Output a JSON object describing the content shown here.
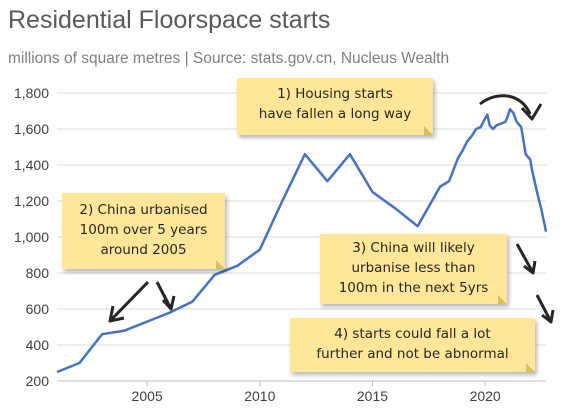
{
  "header": {
    "title": "Residential Floorspace starts",
    "subtitle": "millions of square metres | Source: stats.gov.cn, Nucleus Wealth"
  },
  "annotations": [
    {
      "id": "note1",
      "lines": [
        "1) Housing starts",
        "have fallen a long way"
      ]
    },
    {
      "id": "note2",
      "lines": [
        "2) China urbanised",
        "100m over 5 years",
        "around 2005"
      ]
    },
    {
      "id": "note3",
      "lines": [
        "3) China will likely",
        "urbanise less than",
        "100m in the next 5yrs"
      ]
    },
    {
      "id": "note4",
      "lines": [
        "4) starts could fall a lot",
        "further and not be abnormal"
      ]
    }
  ],
  "colors": {
    "series": "#4472c4",
    "grid": "#d9d9d9",
    "note_fill": "#ffe699",
    "title": "#595959"
  },
  "chart_data": {
    "type": "line",
    "title": "Residential Floorspace starts",
    "subtitle": "millions of square metres | Source: stats.gov.cn, Nucleus Wealth",
    "xlabel": "",
    "ylabel": "",
    "xlim": [
      2001,
      2022.7
    ],
    "ylim": [
      200,
      1800
    ],
    "yticks": [
      200,
      400,
      600,
      800,
      1000,
      1200,
      1400,
      1600,
      1800
    ],
    "ytick_labels": [
      "200",
      "400",
      "600",
      "800",
      "1,000",
      "1,200",
      "1,400",
      "1,600",
      "1,800"
    ],
    "xticks": [
      2005,
      2010,
      2015,
      2020
    ],
    "xtick_labels": [
      "2005",
      "2010",
      "2015",
      "2020"
    ],
    "grid": "horizontal",
    "legend": "none",
    "series": [
      {
        "x": [
          2001,
          2002,
          2003,
          2004,
          2005,
          2006,
          2007,
          2008,
          2009,
          2010,
          2011,
          2012,
          2013,
          2014,
          2015,
          2016,
          2017,
          2018,
          2018.4,
          2018.8,
          2019.0,
          2019.2,
          2019.4,
          2019.6,
          2019.8,
          2020.0,
          2020.1,
          2020.2,
          2020.35,
          2020.5,
          2020.7,
          2020.9,
          2021.0,
          2021.1,
          2021.25,
          2021.4,
          2021.6,
          2021.8,
          2022.0,
          2022.1,
          2022.3,
          2022.5,
          2022.7
        ],
        "y": [
          250,
          300,
          460,
          480,
          530,
          580,
          640,
          790,
          840,
          930,
          1200,
          1460,
          1310,
          1460,
          1250,
          1160,
          1060,
          1280,
          1310,
          1440,
          1480,
          1530,
          1560,
          1600,
          1610,
          1660,
          1680,
          1620,
          1600,
          1620,
          1630,
          1640,
          1670,
          1710,
          1690,
          1640,
          1610,
          1460,
          1430,
          1360,
          1250,
          1150,
          1030
        ]
      }
    ]
  }
}
